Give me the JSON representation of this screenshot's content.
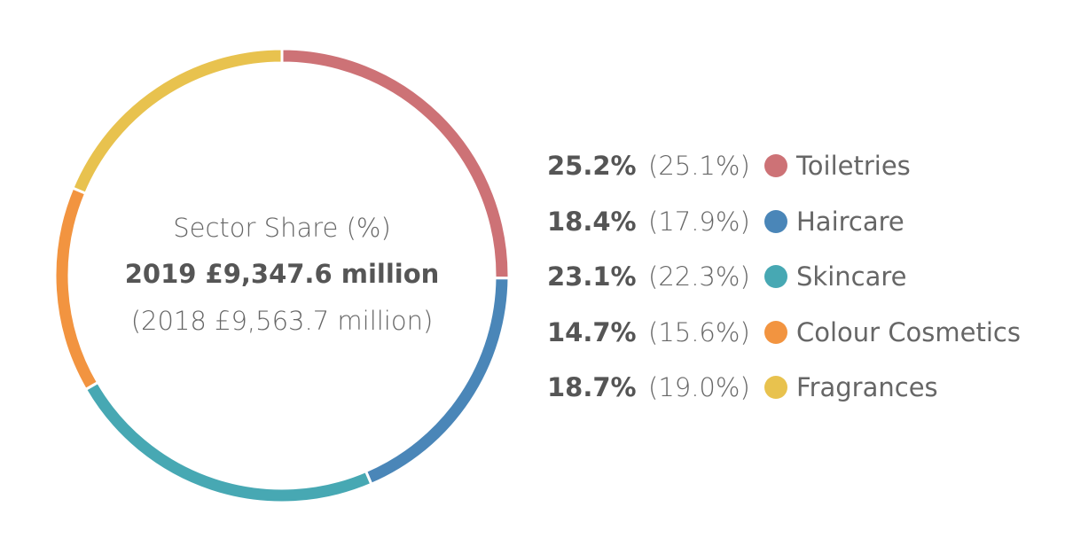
{
  "center": {
    "title": "Sector Share (%)",
    "total": "2019 £9,347.6 million",
    "previous": "(2018 £9,563.7 million)"
  },
  "chart_data": {
    "type": "pie",
    "subtype": "donut",
    "legend_position": "right",
    "categories": [
      "Toiletries",
      "Haircare",
      "Skincare",
      "Colour Cosmetics",
      "Fragrances"
    ],
    "values": [
      25.2,
      18.4,
      23.1,
      14.7,
      18.7
    ],
    "previous_values": [
      25.1,
      17.9,
      22.3,
      15.6,
      19.0
    ],
    "colors": [
      "#cd7276",
      "#4a86b8",
      "#47a8b3",
      "#f29440",
      "#e8c24e"
    ],
    "legend": [
      {
        "name": "Toiletries",
        "value": "25.2%",
        "previous": "(25.1%)"
      },
      {
        "name": "Haircare",
        "value": "18.4%",
        "previous": "(17.9%)"
      },
      {
        "name": "Skincare",
        "value": "23.1%",
        "previous": "(22.3%)"
      },
      {
        "name": "Colour Cosmetics",
        "value": "14.7%",
        "previous": "(15.6%)"
      },
      {
        "name": "Fragrances",
        "value": "18.7%",
        "previous": "(19.0%)"
      }
    ]
  }
}
